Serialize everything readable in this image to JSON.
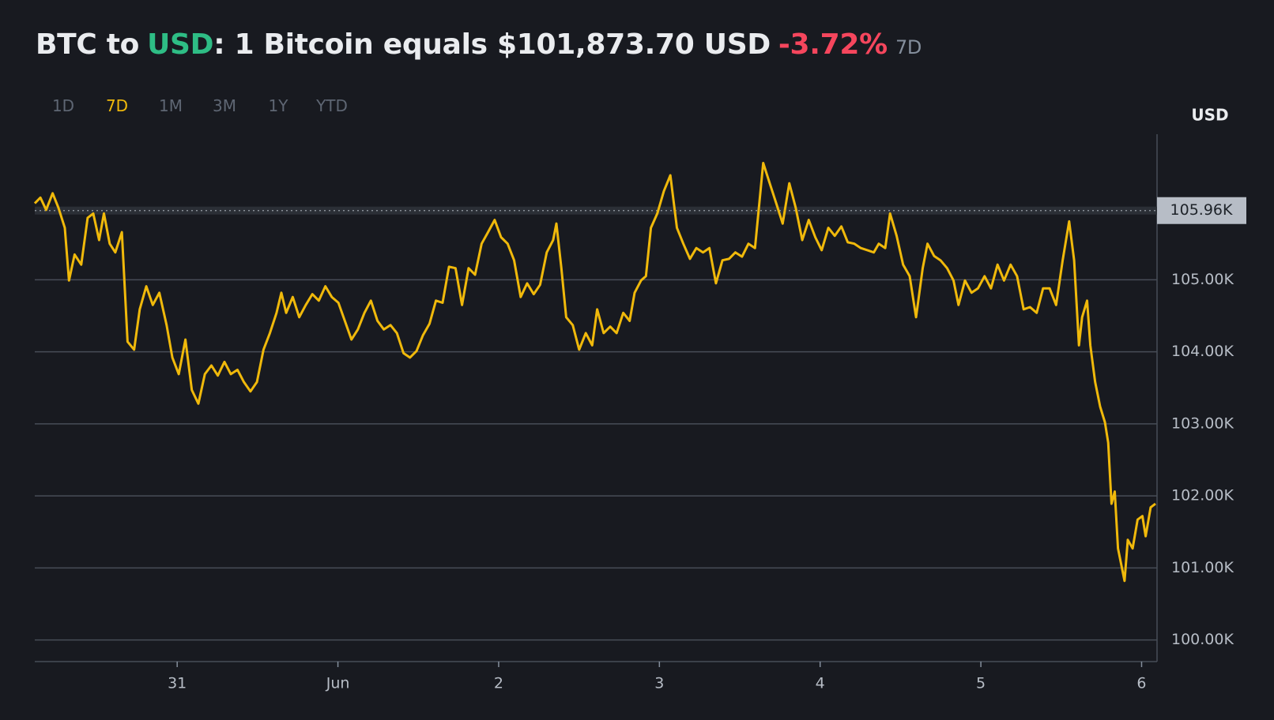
{
  "header": {
    "title_parts": [
      "BTC to",
      "USD",
      ": 1 Bitcoin equals $101,873.70 USD",
      "-3.72%",
      "7D"
    ],
    "ranges": [
      "1D",
      "7D",
      "1M",
      "3M",
      "1Y",
      "YTD"
    ],
    "selected_range": "7D"
  },
  "chart_data": {
    "type": "line",
    "color": "#f0b90b",
    "y_unit": "USD",
    "grid": true,
    "xlim": [
      30.114,
      37.096
    ],
    "xticks": [
      {
        "value": 31,
        "label": "31"
      },
      {
        "value": 32,
        "label": "Jun"
      },
      {
        "value": 33,
        "label": "2"
      },
      {
        "value": 34,
        "label": "3"
      },
      {
        "value": 35,
        "label": "4"
      },
      {
        "value": 36,
        "label": "5"
      },
      {
        "value": 37,
        "label": "6"
      }
    ],
    "ylim": [
      99.7,
      107.02
    ],
    "yticks": [
      {
        "value": 100,
        "label": "100.00K"
      },
      {
        "value": 101,
        "label": "101.00K"
      },
      {
        "value": 102,
        "label": "102.00K"
      },
      {
        "value": 103,
        "label": "103.00K"
      },
      {
        "value": 104,
        "label": "104.00K"
      },
      {
        "value": 105,
        "label": "105.00K"
      }
    ],
    "ref_line": {
      "value": 105.96,
      "label": "105.96K"
    },
    "x": [
      30.114,
      30.149,
      30.185,
      30.225,
      30.261,
      30.301,
      30.327,
      30.362,
      30.403,
      30.443,
      30.478,
      30.514,
      30.544,
      30.58,
      30.615,
      30.656,
      30.691,
      30.732,
      30.767,
      30.808,
      30.848,
      30.889,
      30.934,
      30.97,
      31.01,
      31.051,
      31.091,
      31.132,
      31.172,
      31.213,
      31.253,
      31.294,
      31.334,
      31.375,
      31.415,
      31.456,
      31.496,
      31.537,
      31.577,
      31.618,
      31.648,
      31.678,
      31.719,
      31.759,
      31.8,
      31.841,
      31.881,
      31.922,
      31.962,
      32.003,
      32.043,
      32.084,
      32.124,
      32.165,
      32.205,
      32.246,
      32.286,
      32.327,
      32.367,
      32.408,
      32.448,
      32.489,
      32.529,
      32.57,
      32.61,
      32.651,
      32.691,
      32.732,
      32.772,
      32.813,
      32.853,
      32.894,
      32.934,
      32.975,
      33.015,
      33.056,
      33.096,
      33.137,
      33.177,
      33.218,
      33.258,
      33.299,
      33.339,
      33.359,
      33.39,
      33.42,
      33.461,
      33.501,
      33.542,
      33.582,
      33.613,
      33.653,
      33.694,
      33.734,
      33.775,
      33.815,
      33.846,
      33.886,
      33.916,
      33.947,
      33.987,
      34.028,
      34.068,
      34.109,
      34.149,
      34.19,
      34.23,
      34.271,
      34.311,
      34.352,
      34.392,
      34.433,
      34.473,
      34.514,
      34.554,
      34.595,
      34.646,
      34.686,
      34.727,
      34.767,
      34.808,
      34.848,
      34.889,
      34.929,
      34.97,
      35.01,
      35.051,
      35.091,
      35.132,
      35.172,
      35.213,
      35.253,
      35.294,
      35.334,
      35.365,
      35.405,
      35.435,
      35.476,
      35.516,
      35.557,
      35.597,
      35.638,
      35.668,
      35.709,
      35.749,
      35.79,
      35.83,
      35.861,
      35.901,
      35.942,
      35.982,
      36.023,
      36.063,
      36.104,
      36.144,
      36.185,
      36.225,
      36.266,
      36.306,
      36.347,
      36.387,
      36.428,
      36.468,
      36.509,
      36.549,
      36.58,
      36.61,
      36.63,
      36.661,
      36.681,
      36.711,
      36.742,
      36.772,
      36.792,
      36.813,
      36.833,
      36.853,
      36.894,
      36.914,
      36.944,
      36.975,
      37.005,
      37.025,
      37.056,
      37.086
    ],
    "values": [
      106.06,
      106.14,
      105.97,
      106.2,
      106.0,
      105.72,
      104.99,
      105.35,
      105.21,
      105.86,
      105.92,
      105.55,
      105.92,
      105.5,
      105.38,
      105.66,
      104.14,
      104.03,
      104.59,
      104.91,
      104.65,
      104.82,
      104.37,
      103.92,
      103.69,
      104.17,
      103.47,
      103.28,
      103.69,
      103.81,
      103.67,
      103.86,
      103.69,
      103.75,
      103.58,
      103.45,
      103.58,
      104.03,
      104.26,
      104.54,
      104.82,
      104.54,
      104.76,
      104.48,
      104.65,
      104.8,
      104.71,
      104.91,
      104.76,
      104.68,
      104.43,
      104.17,
      104.31,
      104.54,
      104.71,
      104.43,
      104.31,
      104.37,
      104.26,
      103.98,
      103.92,
      104.01,
      104.23,
      104.39,
      104.71,
      104.68,
      105.18,
      105.16,
      104.65,
      105.16,
      105.07,
      105.5,
      105.66,
      105.83,
      105.59,
      105.5,
      105.27,
      104.76,
      104.95,
      104.8,
      104.93,
      105.38,
      105.55,
      105.78,
      105.16,
      104.48,
      104.37,
      104.03,
      104.26,
      104.09,
      104.59,
      104.26,
      104.35,
      104.26,
      104.54,
      104.43,
      104.82,
      104.99,
      105.05,
      105.72,
      105.92,
      106.23,
      106.45,
      105.72,
      105.5,
      105.29,
      105.44,
      105.38,
      105.44,
      104.95,
      105.27,
      105.29,
      105.38,
      105.32,
      105.5,
      105.44,
      106.62,
      106.34,
      106.06,
      105.78,
      106.34,
      106.0,
      105.55,
      105.83,
      105.59,
      105.41,
      105.72,
      105.61,
      105.74,
      105.52,
      105.5,
      105.44,
      105.41,
      105.38,
      105.5,
      105.44,
      105.92,
      105.61,
      105.21,
      105.05,
      104.48,
      105.16,
      105.5,
      105.33,
      105.27,
      105.16,
      104.99,
      104.65,
      104.99,
      104.82,
      104.88,
      105.05,
      104.88,
      105.21,
      104.99,
      105.21,
      105.05,
      104.59,
      104.62,
      104.54,
      104.88,
      104.88,
      104.65,
      105.27,
      105.81,
      105.27,
      104.09,
      104.48,
      104.71,
      104.09,
      103.58,
      103.24,
      103.02,
      102.74,
      101.89,
      102.06,
      101.27,
      100.82,
      101.39,
      101.27,
      101.67,
      101.72,
      101.44,
      101.84,
      101.89
    ]
  }
}
